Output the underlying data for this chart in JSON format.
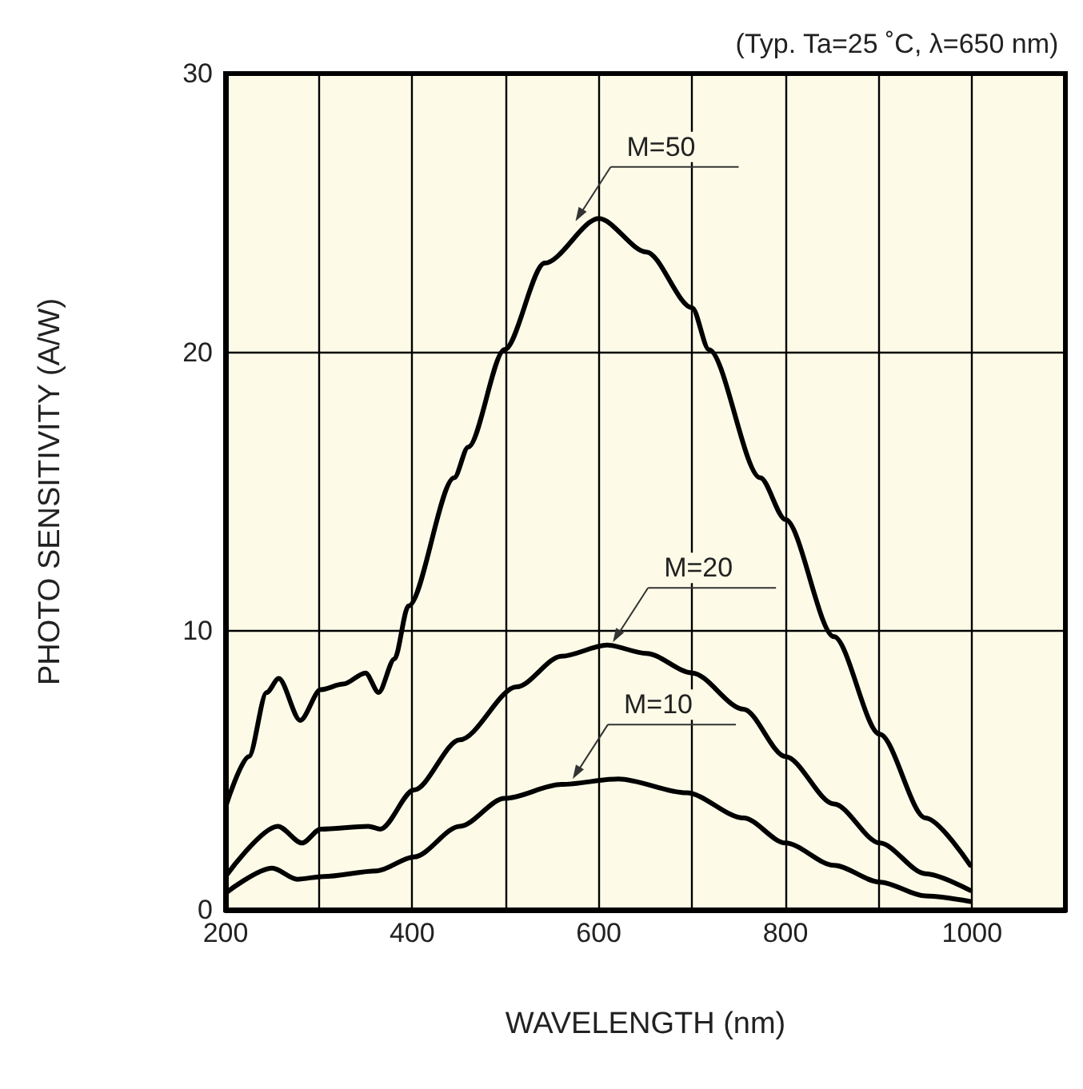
{
  "chart_data": {
    "type": "line",
    "title": "(Typ. Ta=25 ˚C, λ=650 nm)",
    "xlabel": "WAVELENGTH (nm)",
    "ylabel": "PHOTO SENSITIVITY (A/W)",
    "xlim": [
      200,
      1100
    ],
    "xticks": [
      200,
      {
        "value": 300,
        "label": null
      },
      400,
      {
        "value": 500,
        "label": null
      },
      600,
      {
        "value": 700,
        "label": null
      },
      800,
      {
        "value": 900,
        "label": null
      },
      1000,
      {
        "value": 1100,
        "label": null
      }
    ],
    "ylim": [
      0,
      30
    ],
    "yticks": [
      0,
      10,
      20,
      30
    ],
    "grid": true,
    "marker": "none",
    "line_style": "solid",
    "series": [
      {
        "color": "#000000",
        "x": [
          200,
          225,
          244,
          257,
          280,
          302,
          326,
          350,
          364,
          381,
          396,
          445,
          460,
          499,
          542,
          600,
          651,
          700,
          718,
          773,
          800,
          852,
          901,
          950,
          998
        ],
        "values": [
          3.7,
          5.5,
          7.8,
          8.3,
          6.8,
          7.9,
          8.1,
          8.5,
          7.8,
          9.0,
          10.9,
          15.5,
          16.6,
          20.1,
          23.2,
          24.8,
          23.6,
          21.6,
          20.1,
          15.5,
          14.0,
          9.8,
          6.3,
          3.3,
          1.6
        ]
      },
      {
        "color": "#000000",
        "x": [
          200,
          256,
          282,
          302,
          353,
          366,
          402,
          451,
          512,
          560,
          609,
          651,
          700,
          755,
          800,
          852,
          901,
          950,
          998
        ],
        "values": [
          1.2,
          3.0,
          2.4,
          2.9,
          3.0,
          2.9,
          4.3,
          6.1,
          8.0,
          9.1,
          9.5,
          9.2,
          8.5,
          7.2,
          5.5,
          3.8,
          2.4,
          1.3,
          0.7
        ]
      },
      {
        "color": "#000000",
        "x": [
          200,
          250,
          277,
          305,
          362,
          402,
          451,
          499,
          560,
          621,
          694,
          755,
          800,
          852,
          901,
          950,
          998
        ],
        "values": [
          0.6,
          1.5,
          1.1,
          1.2,
          1.4,
          1.9,
          3.0,
          4.0,
          4.5,
          4.7,
          4.2,
          3.3,
          2.4,
          1.6,
          1.0,
          0.5,
          0.3
        ]
      }
    ],
    "annotations": [
      {
        "text": "M=50",
        "x": 575,
        "y": 24.7
      },
      {
        "text": "M=20",
        "x": 615,
        "y": 9.6
      },
      {
        "text": "M=10",
        "x": 572,
        "y": 4.7
      }
    ]
  }
}
